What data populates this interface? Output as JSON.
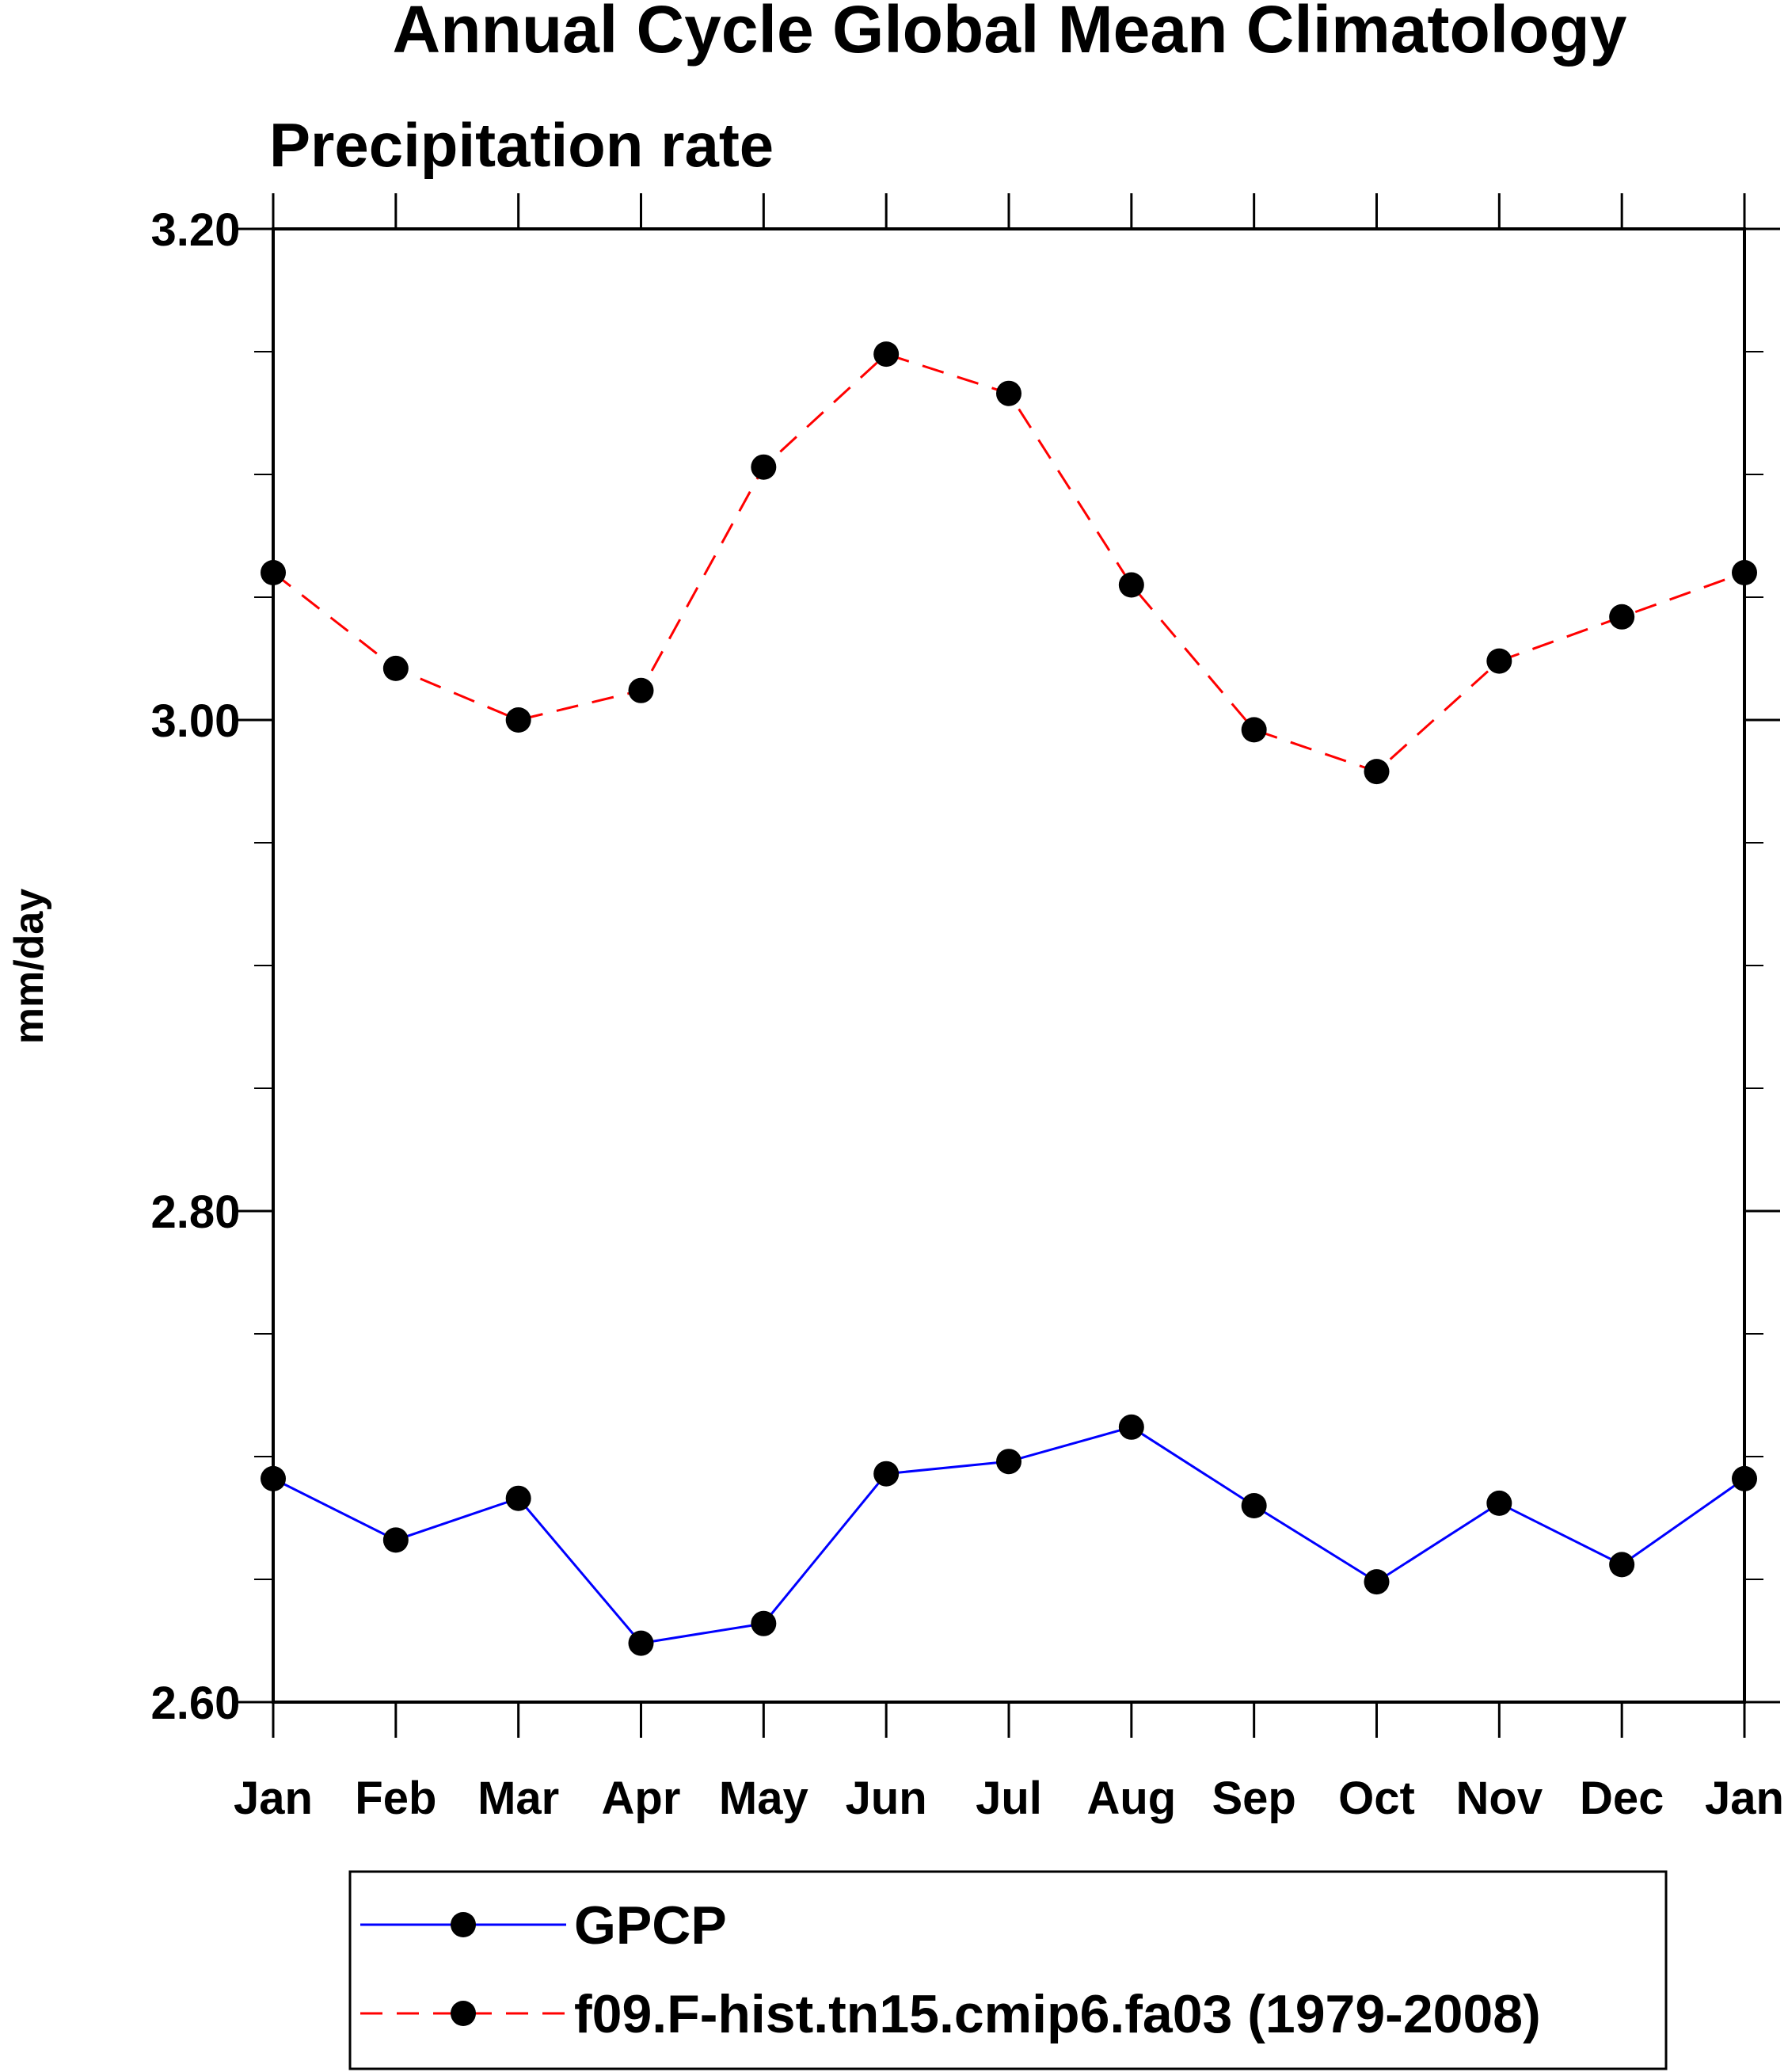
{
  "chart_data": {
    "type": "line",
    "title": "Annual Cycle Global Mean Climatology",
    "subtitle": "Precipitation rate",
    "xlabel": "",
    "ylabel": "mm/day",
    "categories": [
      "Jan",
      "Feb",
      "Mar",
      "Apr",
      "May",
      "Jun",
      "Jul",
      "Aug",
      "Sep",
      "Oct",
      "Nov",
      "Dec",
      "Jan"
    ],
    "yticks": [
      "3.20",
      "3.00",
      "2.80",
      "2.60"
    ],
    "ylim": [
      2.6,
      3.2
    ],
    "ytick_values": [
      3.2,
      3.0,
      2.8,
      2.6
    ],
    "minor_ytick_step": 0.05,
    "grid": false,
    "legend_position": "bottom",
    "series": [
      {
        "name": "GPCP",
        "color": "#0000ff",
        "line_style": "solid",
        "marker": "filled-circle",
        "marker_color": "#000000",
        "values": [
          2.691,
          2.666,
          2.683,
          2.624,
          2.632,
          2.693,
          2.698,
          2.712,
          2.68,
          2.649,
          2.681,
          2.656,
          2.691
        ]
      },
      {
        "name": "f09.F-hist.tn15.cmip6.fa03 (1979-2008)",
        "color": "#ff0000",
        "line_style": "dashed",
        "marker": "filled-circle",
        "marker_color": "#000000",
        "values": [
          3.06,
          3.021,
          3.0,
          3.012,
          3.103,
          3.149,
          3.133,
          3.055,
          2.996,
          2.979,
          3.024,
          3.042,
          3.06
        ]
      }
    ]
  }
}
